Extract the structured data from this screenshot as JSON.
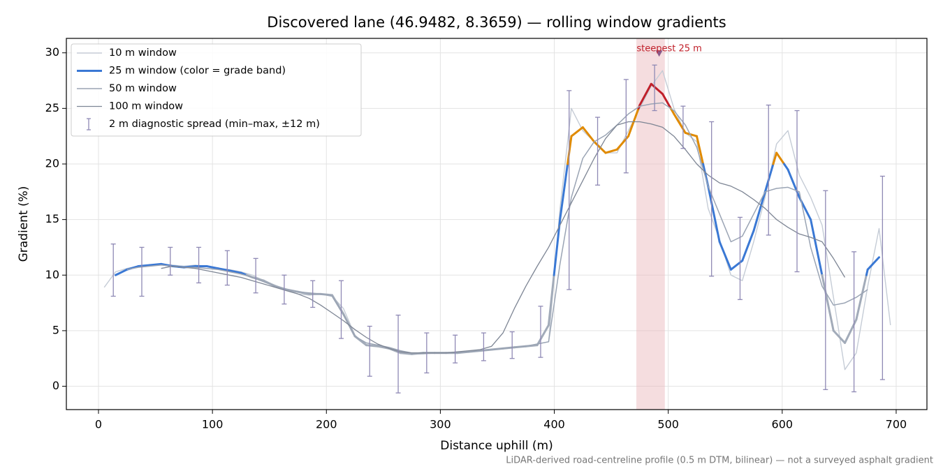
{
  "chart_data": {
    "type": "line",
    "title": "Discovered lane (46.9482, 8.3659) — rolling window gradients",
    "x_label": "Distance uphill (m)",
    "y_label": "Gradient (%)",
    "footnote": "LiDAR-derived road-centreline profile (0.5 m DTM, bilinear) — not a surveyed asphalt gradient",
    "xlim": [
      -28.2,
      727
    ],
    "ylim": [
      -2.1,
      31.3
    ],
    "xticks": [
      0,
      100,
      200,
      300,
      400,
      500,
      600,
      700
    ],
    "yticks": [
      0,
      5,
      10,
      15,
      20,
      25,
      30
    ],
    "grid": true,
    "legend": "upper left",
    "x": [
      5,
      15,
      25,
      35,
      45,
      55,
      65,
      75,
      85,
      95,
      105,
      115,
      125,
      135,
      145,
      155,
      165,
      175,
      185,
      195,
      205,
      215,
      225,
      235,
      245,
      255,
      265,
      275,
      285,
      295,
      305,
      315,
      325,
      335,
      345,
      355,
      365,
      375,
      385,
      395,
      405,
      415,
      425,
      435,
      445,
      455,
      465,
      475,
      485,
      495,
      505,
      515,
      525,
      535,
      545,
      555,
      565,
      575,
      585,
      595,
      605,
      615,
      625,
      635,
      645,
      655,
      665,
      675,
      685,
      695
    ],
    "series": [
      {
        "name": "10 m window",
        "color": "#c5ccd6",
        "width": 1.4,
        "values": [
          8.9,
          10.3,
          10.6,
          10.8,
          10.9,
          11.0,
          10.9,
          10.8,
          10.9,
          10.8,
          10.6,
          10.5,
          10.3,
          10.0,
          9.5,
          9.1,
          8.7,
          8.3,
          8.2,
          8.3,
          8.1,
          7.0,
          4.6,
          3.7,
          3.6,
          3.4,
          3.2,
          2.9,
          2.9,
          3.0,
          3.0,
          3.0,
          3.1,
          3.2,
          3.3,
          3.4,
          3.5,
          3.6,
          3.8,
          4.0,
          16,
          25,
          23,
          22,
          21,
          21,
          23,
          25,
          27,
          28.4,
          25,
          22.8,
          22,
          16,
          13.2,
          10,
          9.5,
          13,
          17,
          21.8,
          23,
          19,
          17,
          14.5,
          8,
          1.5,
          3,
          9,
          14.2,
          5.5
        ]
      },
      {
        "name": "25 m window (color = grade band)",
        "color": "#3a78d4",
        "width": 3,
        "band_edges": [
          10,
          20,
          25
        ],
        "band_colors": [
          "#a2abb9",
          "#3a78d4",
          "#e08a00",
          "#c0202a"
        ],
        "values": [
          null,
          10.0,
          10.5,
          10.8,
          10.9,
          11.0,
          10.8,
          10.7,
          10.8,
          10.8,
          10.6,
          10.4,
          10.2,
          9.8,
          9.5,
          9.0,
          8.7,
          8.5,
          8.3,
          8.3,
          8.2,
          6.5,
          4.5,
          3.7,
          3.6,
          3.4,
          3.0,
          2.9,
          3.0,
          3.0,
          3.0,
          3.0,
          3.1,
          3.2,
          3.3,
          3.4,
          3.5,
          3.6,
          3.7,
          5.5,
          15,
          22.5,
          23.3,
          22,
          21,
          21.3,
          22.5,
          25.3,
          27.2,
          26.3,
          24.5,
          22.8,
          22.5,
          18,
          13,
          10.5,
          11.3,
          14,
          17.5,
          21,
          19.5,
          17,
          15,
          10,
          5,
          3.9,
          6,
          10.5,
          11.6,
          null
        ]
      },
      {
        "name": "50 m window",
        "color": "#9aa4b4",
        "width": 1.5,
        "values": [
          null,
          null,
          10.5,
          10.7,
          10.8,
          10.9,
          10.8,
          10.7,
          10.7,
          10.6,
          10.5,
          10.3,
          10.1,
          9.8,
          9.4,
          9.0,
          8.7,
          8.5,
          8.4,
          8.3,
          8.1,
          6.4,
          4.5,
          3.9,
          3.7,
          3.5,
          3.2,
          3.0,
          3.0,
          3.0,
          3.0,
          3.0,
          3.1,
          3.2,
          3.3,
          3.4,
          3.5,
          3.6,
          3.8,
          4.0,
          11,
          17,
          20.5,
          22,
          22.6,
          23.5,
          24.5,
          25.2,
          25.4,
          25.5,
          24.8,
          23.5,
          21.5,
          18,
          15.5,
          13,
          13.5,
          15.5,
          17.5,
          17.8,
          17.9,
          17.5,
          12.5,
          9,
          7.3,
          7.5,
          8,
          8.7,
          null,
          null
        ]
      },
      {
        "name": "100 m window",
        "color": "#7d8594",
        "width": 1.3,
        "values": [
          null,
          null,
          null,
          null,
          null,
          10.6,
          10.8,
          10.7,
          10.6,
          10.4,
          10.2,
          10.0,
          9.8,
          9.5,
          9.2,
          8.9,
          8.6,
          8.3,
          7.9,
          7.3,
          6.6,
          5.9,
          5.1,
          4.4,
          3.8,
          3.4,
          3.1,
          3.0,
          3.0,
          3.0,
          3.0,
          3.1,
          3.2,
          3.3,
          3.6,
          4.8,
          7,
          9,
          10.8,
          12.5,
          14.5,
          16.5,
          18.5,
          20.5,
          22.3,
          23.5,
          23.8,
          23.8,
          23.6,
          23.3,
          22.5,
          21.3,
          20,
          19,
          18.3,
          18,
          17.5,
          16.8,
          16,
          15,
          14.3,
          13.7,
          13.4,
          13.0,
          11.5,
          9.8,
          null,
          null,
          null,
          null
        ]
      }
    ],
    "errorbars": {
      "name": "2 m diagnostic spread (min–max, ±12 m)",
      "color": "#8f89b5",
      "x": [
        13,
        38,
        63,
        88,
        113,
        138,
        163,
        188,
        213,
        238,
        263,
        288,
        313,
        338,
        363,
        388,
        413,
        438,
        463,
        488,
        513,
        538,
        563,
        588,
        613,
        638,
        663,
        688
      ],
      "low": [
        8.1,
        8.1,
        10.0,
        9.3,
        9.1,
        8.4,
        7.4,
        7.1,
        4.3,
        0.9,
        -0.6,
        1.2,
        2.1,
        2.3,
        2.5,
        2.6,
        8.7,
        18.1,
        19.2,
        24.8,
        21.4,
        9.9,
        7.8,
        13.6,
        10.3,
        -0.3,
        -0.5,
        0.6
      ],
      "high": [
        12.8,
        12.5,
        12.5,
        12.5,
        12.2,
        11.5,
        10.0,
        9.5,
        9.5,
        5.4,
        6.4,
        4.8,
        4.6,
        4.8,
        4.9,
        7.2,
        26.6,
        24.2,
        27.6,
        28.9,
        25.2,
        23.8,
        15.2,
        25.3,
        24.8,
        17.6,
        12.1,
        18.9
      ]
    },
    "highlight": {
      "label": "steepest 25 m",
      "xlim": [
        472,
        497
      ],
      "color": "#e8b4b8",
      "marker_x": 492,
      "marker_y": 29.9,
      "label_color": "#c0202a"
    }
  }
}
